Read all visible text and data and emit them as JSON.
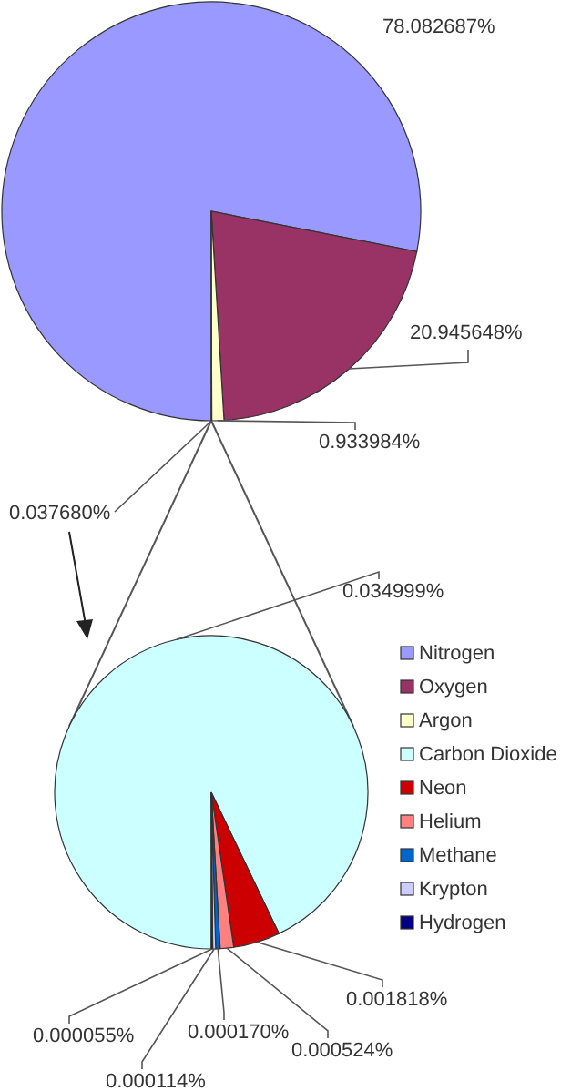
{
  "chart_data": [
    {
      "type": "pie",
      "categories": [
        "Nitrogen",
        "Oxygen",
        "Argon",
        null
      ],
      "values": [
        78.082687,
        20.945648,
        0.933984,
        0.03768
      ],
      "colors": [
        "#9999ff",
        "#993366",
        "#ffffcc",
        "#ccffff"
      ],
      "value_labels": [
        "78.082687%",
        "20.945648%",
        "0.933984%",
        "0.037680%"
      ],
      "legend": "bottom right"
    },
    {
      "type": "pie",
      "categories": [
        "Carbon Dioxide",
        "Neon",
        "Helium",
        "Methane",
        "Krypton",
        "Hydrogen"
      ],
      "values": [
        0.034999,
        0.001818,
        0.000524,
        0.00017,
        0.000114,
        5.5e-05
      ],
      "colors": [
        "#ccffff",
        "#cc0000",
        "#ff8080",
        "#0066cc",
        "#ccccff",
        "#000080"
      ],
      "value_labels": [
        "0.034999%",
        "0.001818%",
        "0.000524%",
        "0.000170%",
        "0.000114%",
        "0.000055%"
      ],
      "legend": "right"
    }
  ]
}
